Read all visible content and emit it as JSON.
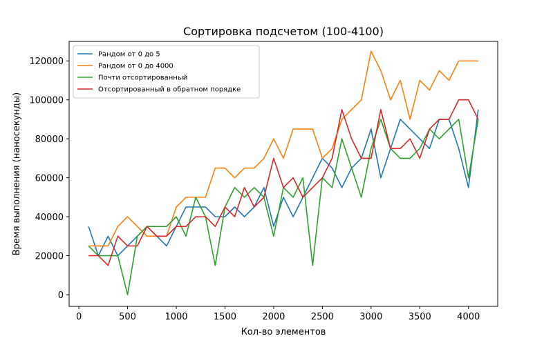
{
  "chart_data": {
    "type": "line",
    "title": "Сортировка подсчетом (100-4100)",
    "xlabel": "Кол-во элементов",
    "ylabel": "Время выполнения (наносекунды)",
    "xlim": [
      -100,
      4300
    ],
    "ylim": [
      -6000,
      130000
    ],
    "xticks": [
      0,
      500,
      1000,
      1500,
      2000,
      2500,
      3000,
      3500,
      4000
    ],
    "yticks": [
      0,
      20000,
      40000,
      60000,
      80000,
      100000,
      120000
    ],
    "legend_position": "upper-left",
    "x": [
      100,
      200,
      300,
      400,
      500,
      600,
      700,
      800,
      900,
      1000,
      1100,
      1200,
      1300,
      1400,
      1500,
      1600,
      1700,
      1800,
      1900,
      2000,
      2100,
      2200,
      2300,
      2400,
      2500,
      2600,
      2700,
      2800,
      2900,
      3000,
      3100,
      3200,
      3300,
      3400,
      3500,
      3600,
      3700,
      3800,
      3900,
      4000,
      4100
    ],
    "series": [
      {
        "name": "Рандом от 0 до 5",
        "color": "#1f77b4",
        "values": [
          35000,
          20000,
          30000,
          20000,
          25000,
          30000,
          35000,
          30000,
          25000,
          35000,
          45000,
          45000,
          45000,
          40000,
          40000,
          45000,
          40000,
          45000,
          55000,
          35000,
          50000,
          40000,
          50000,
          60000,
          70000,
          65000,
          55000,
          65000,
          70000,
          85000,
          60000,
          75000,
          90000,
          85000,
          80000,
          75000,
          90000,
          90000,
          75000,
          55000,
          95000
        ]
      },
      {
        "name": "Рандом от 0 до 4000",
        "color": "#ff7f0e",
        "values": [
          25000,
          25000,
          25000,
          35000,
          40000,
          35000,
          30000,
          30000,
          30000,
          45000,
          50000,
          50000,
          50000,
          65000,
          65000,
          60000,
          65000,
          65000,
          70000,
          80000,
          70000,
          85000,
          85000,
          85000,
          70000,
          75000,
          90000,
          95000,
          100000,
          125000,
          115000,
          100000,
          110000,
          90000,
          110000,
          105000,
          115000,
          110000,
          120000,
          120000,
          120000
        ]
      },
      {
        "name": "Почти отсортированный",
        "color": "#2ca02c",
        "values": [
          25000,
          20000,
          20000,
          20000,
          0,
          30000,
          35000,
          35000,
          35000,
          40000,
          30000,
          50000,
          40000,
          15000,
          45000,
          55000,
          50000,
          55000,
          50000,
          30000,
          55000,
          50000,
          60000,
          15000,
          60000,
          55000,
          80000,
          65000,
          50000,
          75000,
          90000,
          75000,
          70000,
          70000,
          75000,
          85000,
          80000,
          85000,
          90000,
          60000,
          90000
        ]
      },
      {
        "name": "Отсортированный в обратном порядке",
        "color": "#d62728",
        "values": [
          20000,
          20000,
          15000,
          30000,
          25000,
          25000,
          35000,
          30000,
          30000,
          35000,
          35000,
          40000,
          40000,
          35000,
          45000,
          40000,
          55000,
          45000,
          50000,
          70000,
          55000,
          60000,
          50000,
          55000,
          60000,
          70000,
          95000,
          80000,
          70000,
          70000,
          95000,
          75000,
          75000,
          80000,
          70000,
          85000,
          90000,
          90000,
          100000,
          100000,
          90000
        ]
      }
    ]
  }
}
